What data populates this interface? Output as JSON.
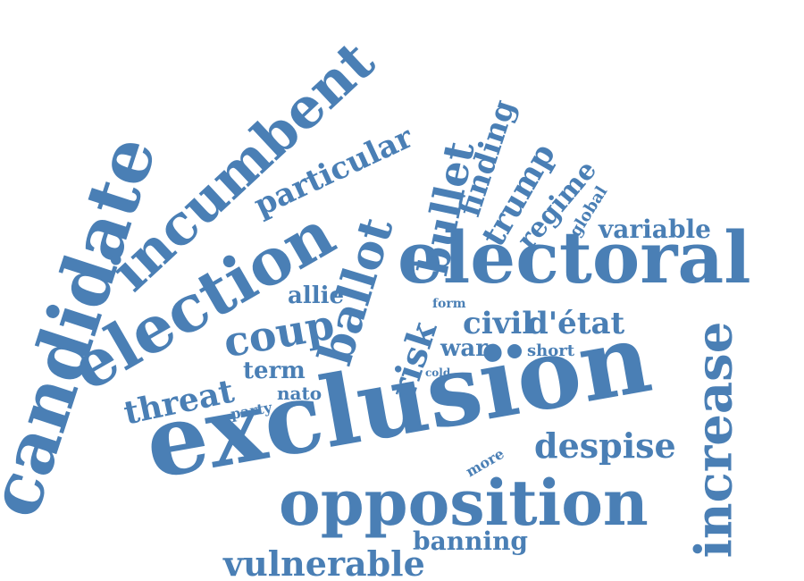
{
  "cloud": {
    "color": "#4a7fb5",
    "background": "#ffffff",
    "words": {
      "candidate": "candidate",
      "incumbent": "incumbent",
      "election": "election",
      "electoral": "electoral",
      "exclusion": "exclusion",
      "opposition": "opposition",
      "increase": "increase",
      "ballot": "ballot",
      "bullet": "bullet",
      "particular": "particular",
      "coup": "coup",
      "risk": "risk",
      "finding": "finding",
      "trump": "trump",
      "regime": "regime",
      "global": "global",
      "variable": "variable",
      "civil": "civil",
      "detat": "d'état",
      "war": "war",
      "short": "short",
      "allie": "allie",
      "term": "term",
      "threat": "threat",
      "party": "party",
      "nato": "nato",
      "form": "form",
      "cold": "cold",
      "despise": "despise",
      "more": "more",
      "banning": "banning",
      "vulnerable": "vulnerable"
    }
  }
}
